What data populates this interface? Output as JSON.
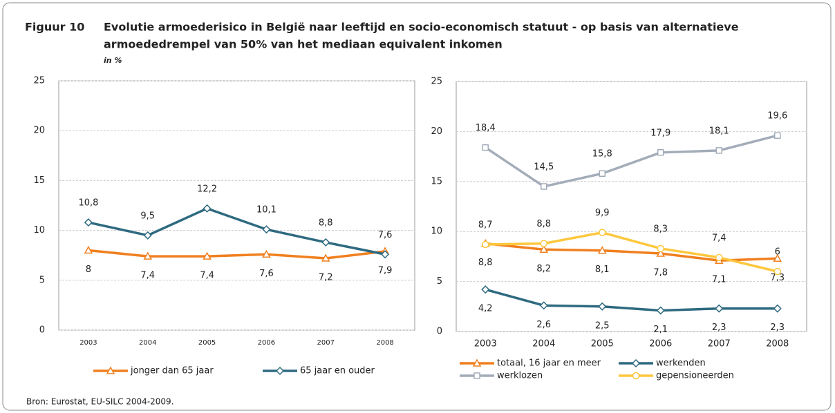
{
  "figure": {
    "label": "Figuur 10",
    "title": [
      "Evolutie armoederisico in België naar leeftijd en socio-economisch statuut - op basis van alternatieve",
      "armoededrempel van 50% van het mediaan equivalent inkomen"
    ],
    "unit": "in %"
  },
  "chart_data": [
    {
      "type": "line",
      "categories": [
        "2003",
        "2004",
        "2005",
        "2006",
        "2007",
        "2008"
      ],
      "ylim": [
        0,
        25
      ],
      "yticks": [
        0,
        5,
        10,
        15,
        20,
        25
      ],
      "grid": true,
      "series": [
        {
          "name": "jonger dan 65 jaar",
          "color": "#f07f1e",
          "marker": "triangle",
          "values": [
            8,
            7.4,
            7.4,
            7.6,
            7.2,
            7.9
          ],
          "value_labels": [
            "8",
            "7,4",
            "7,4",
            "7,6",
            "7,2",
            "7,9"
          ]
        },
        {
          "name": "65 jaar en ouder",
          "color": "#2e6a80",
          "marker": "diamond",
          "values": [
            10.8,
            9.5,
            12.2,
            10.1,
            8.8,
            7.6
          ],
          "value_labels": [
            "10,8",
            "9,5",
            "12,2",
            "10,1",
            "8,8",
            "7,6"
          ]
        }
      ]
    },
    {
      "type": "line",
      "categories": [
        "2003",
        "2004",
        "2005",
        "2006",
        "2007",
        "2008"
      ],
      "ylim": [
        0,
        25
      ],
      "yticks": [
        0,
        5,
        10,
        15,
        20,
        25
      ],
      "grid": true,
      "series": [
        {
          "name": "totaal, 16 jaar en meer",
          "color": "#f07f1e",
          "marker": "triangle",
          "values": [
            8.8,
            8.2,
            8.1,
            7.8,
            7.1,
            7.3
          ],
          "value_labels": [
            "8,8",
            "8,2",
            "8,1",
            "7,8",
            "7,1",
            "7,3"
          ]
        },
        {
          "name": "werkenden",
          "color": "#2e6a80",
          "marker": "diamond",
          "values": [
            4.2,
            2.6,
            2.5,
            2.1,
            2.3,
            2.3
          ],
          "value_labels": [
            "4,2",
            "2,6",
            "2,5",
            "2,1",
            "2,3",
            "2,3"
          ]
        },
        {
          "name": "werklozen",
          "color": "#a3acb9",
          "marker": "square",
          "values": [
            18.4,
            14.5,
            15.8,
            17.9,
            18.1,
            19.6
          ],
          "value_labels": [
            "18,4",
            "14,5",
            "15,8",
            "17,9",
            "18,1",
            "19,6"
          ]
        },
        {
          "name": "gepensioneerden",
          "color": "#fdc73e",
          "marker": "circle",
          "values": [
            8.7,
            8.8,
            9.9,
            8.3,
            7.4,
            6
          ],
          "value_labels": [
            "8,7",
            "8,8",
            "9,9",
            "8,3",
            "7,4",
            "6"
          ]
        }
      ]
    }
  ],
  "source": "Bron: Eurostat, EU-SILC 2004-2009."
}
